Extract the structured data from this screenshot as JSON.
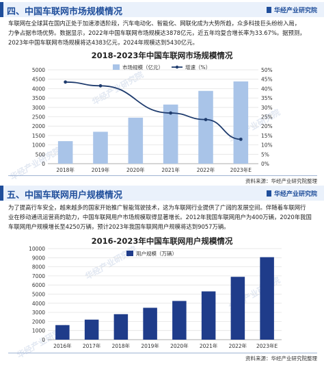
{
  "section1": {
    "title": "四、中国车联网市场规模情况",
    "brand": "华经产业研究院",
    "paragraph": [
      "车联网在全球其在国内正处于加速渗透阶段，汽车电动化、智能化、网联化成为大势所趋，众多科技巨头纷纷入局，",
      "力争占据市场优势。数据显示，2022年中国车联网市场规模达3878亿元，近五年均复合增长率为33.67%。据预测，",
      "2023年中国车联网市场规模将达4383亿元，2024年规模达到5430亿元。"
    ],
    "source": "资料来源：华经产业研究院整理"
  },
  "section2": {
    "title": "五、中国车联网用户规模情况",
    "brand": "华经产业研究院",
    "paragraph": [
      "为了提高行车安全，越来越多的国家开始推广智能驾驶技术，这为车联网行业提供了广阔的发展空间。伴随着车联网行",
      "业在移动通讯运营商的助力，中国车联网用户市场规模取得显著增长。2012年我国车联网用户为400万辆，2020年我国",
      "车联网用户规模增长至4250万辆，预计2023年我国车联网用户规模将达到9057万辆。"
    ],
    "source": "资料来源：华经产业研究院整理"
  },
  "watermark": "华经产业研究院",
  "chart_data": [
    {
      "type": "bar",
      "title": "2018-2023年中国车联网市场规模情况",
      "categories": [
        "2018年",
        "2019年",
        "2020年",
        "2021年",
        "2022年",
        "2023年E"
      ],
      "series": [
        {
          "name": "市场规模（亿元）",
          "type": "bar",
          "axis": "left",
          "color": "#a9c4e8",
          "values": [
            1200,
            1700,
            2450,
            3150,
            3878,
            4383
          ]
        },
        {
          "name": "增速（%）",
          "type": "line",
          "axis": "right",
          "color": "#1f3c6e",
          "values": [
            43.5,
            41.5,
            null,
            27,
            23.5,
            13
          ]
        }
      ],
      "y_left": {
        "min": 0,
        "max": 5000,
        "ticks": [
          0,
          500,
          1000,
          1500,
          2000,
          2500,
          3000,
          3500,
          4000,
          4500,
          5000
        ]
      },
      "y_right": {
        "min": 0,
        "max": 50,
        "ticks": [
          "0%",
          "5%",
          "10%",
          "15%",
          "20%",
          "25%",
          "30%",
          "35%",
          "40%",
          "45%",
          "50%"
        ]
      },
      "legend": "top"
    },
    {
      "type": "bar",
      "title": "2016-2023年中国车联网用户规模情况",
      "categories": [
        "2016年",
        "2017年",
        "2018年",
        "2019年",
        "2020年",
        "2021年",
        "2022年",
        "2023年E"
      ],
      "series": [
        {
          "name": "用户规模（万辆）",
          "color": "#1f3c8a",
          "values": [
            1600,
            2200,
            2800,
            3500,
            4250,
            5300,
            6900,
            9057
          ]
        }
      ],
      "y_left": {
        "min": 0,
        "max": 10000,
        "ticks": [
          0,
          1000,
          2000,
          3000,
          4000,
          5000,
          6000,
          7000,
          8000,
          9000,
          10000
        ]
      },
      "legend": "top"
    }
  ]
}
